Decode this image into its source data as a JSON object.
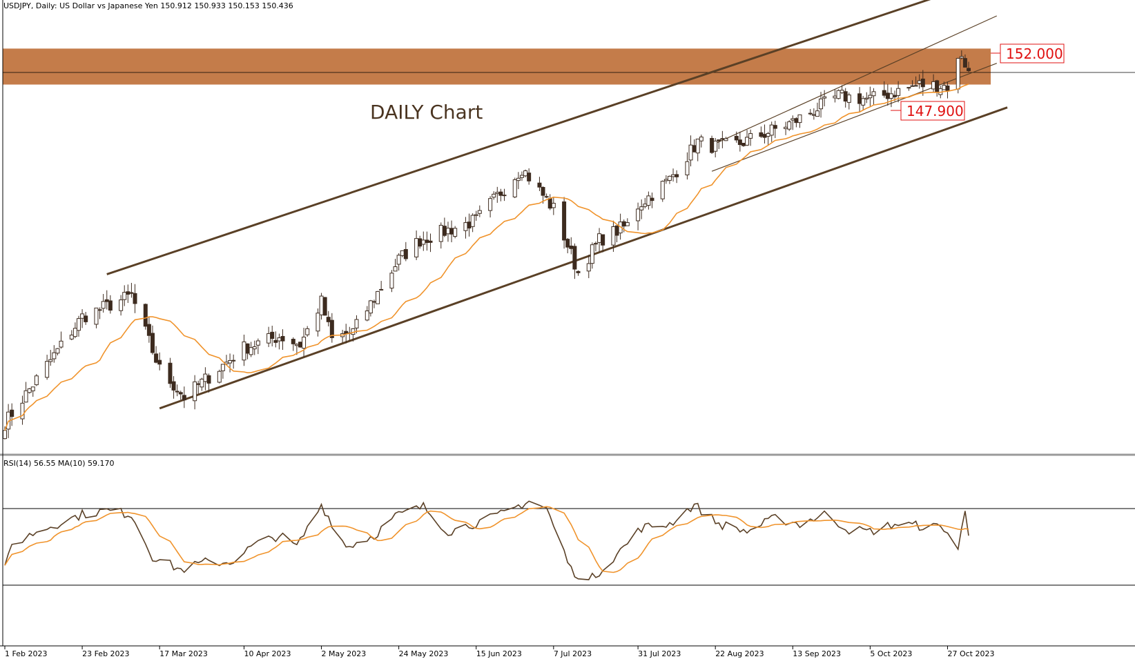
{
  "header": {
    "symbol_line": "USDJPY, Daily:  US Dollar vs Japanese Yen  150.912 150.933 150.153 150.436"
  },
  "annotation": "DAILY Chart",
  "levels": {
    "resistance": {
      "label": "152.000",
      "value": 152.0
    },
    "support": {
      "label": "147.900",
      "value": 147.9
    },
    "zone": {
      "from": 149.7,
      "to": 151.9,
      "color": "#c47c4a"
    },
    "current_price_line": 150.44
  },
  "rsi_panel": {
    "label": "RSI(14) 56.55 MA(10) 59.170",
    "levels": [
      70,
      30
    ]
  },
  "colors": {
    "candle_up": "#ffffff",
    "candle_down": "#3d2b1f",
    "wick": "#3d2b1f",
    "ma": "#f0932b",
    "channel": "#5a4026",
    "rsi": "#5a4026",
    "rsi_ma": "#f0932b",
    "level_text": "#e01010"
  },
  "chart_data": {
    "type": "candlestick",
    "title": "DAILY Chart",
    "x_tick_labels": [
      "1 Feb 2023",
      "23 Feb 2023",
      "17 Mar 2023",
      "10 Apr 2023",
      "2 May 2023",
      "24 May 2023",
      "15 Jun 2023",
      "7 Jul 2023",
      "31 Jul 2023",
      "22 Aug 2023",
      "13 Sep 2023",
      "5 Oct 2023",
      "27 Oct 2023"
    ],
    "ylim": [
      125.2,
      156.5
    ],
    "grid": false,
    "close_series": {
      "name": "USDJPY close",
      "anchors": [
        [
          "1 Feb 2023",
          129.0
        ],
        [
          "23 Feb 2023",
          135.5
        ],
        [
          "9 Mar 2023",
          136.8
        ],
        [
          "17 Mar 2023",
          132.3
        ],
        [
          "24 Mar 2023",
          130.6
        ],
        [
          "10 Apr 2023",
          133.6
        ],
        [
          "20 Apr 2023",
          134.3
        ],
        [
          "26 Apr 2023",
          133.8
        ],
        [
          "2 May 2023",
          136.4
        ],
        [
          "5 May 2023",
          134.1
        ],
        [
          "11 May 2023",
          134.6
        ],
        [
          "24 May 2023",
          139.0
        ],
        [
          "30 May 2023",
          140.2
        ],
        [
          "15 Jun 2023",
          141.4
        ],
        [
          "28 Jun 2023",
          144.6
        ],
        [
          "7 Jul 2023",
          142.1
        ],
        [
          "14 Jul 2023",
          138.2
        ],
        [
          "20 Jul 2023",
          140.2
        ],
        [
          "28 Jul 2023",
          141.1
        ],
        [
          "31 Jul 2023",
          142.3
        ],
        [
          "9 Aug 2023",
          143.9
        ],
        [
          "17 Aug 2023",
          146.2
        ],
        [
          "22 Aug 2023",
          145.9
        ],
        [
          "29 Aug 2023",
          146.1
        ],
        [
          "13 Sep 2023",
          147.4
        ],
        [
          "26 Sep 2023",
          149.0
        ],
        [
          "5 Oct 2023",
          148.8
        ],
        [
          "19 Oct 2023",
          149.7
        ],
        [
          "27 Oct 2023",
          149.6
        ],
        [
          "31 Oct 2023",
          151.6
        ],
        [
          "2 Nov 2023",
          150.4
        ]
      ]
    },
    "series": [
      {
        "name": "MA",
        "kind": "moving-average",
        "period": 20
      }
    ],
    "trendlines": [
      {
        "name": "upper-channel",
        "from": [
          "2 Mar 2023",
          138.1
        ],
        "to": [
          "13 Nov 2023",
          156.5
        ]
      },
      {
        "name": "lower-channel",
        "from": [
          "17 Mar 2023",
          129.9
        ],
        "to": [
          "13 Nov 2023",
          148.3
        ]
      },
      {
        "name": "inner-upper",
        "from": [
          "21 Aug 2023",
          146.0
        ],
        "to": [
          "10 Nov 2023",
          153.9
        ]
      },
      {
        "name": "inner-lower",
        "from": [
          "21 Aug 2023",
          144.4
        ],
        "to": [
          "10 Nov 2023",
          151.0
        ]
      }
    ],
    "rsi": {
      "name": "RSI(14)",
      "ylim": [
        0,
        100
      ],
      "levels": [
        70,
        30
      ],
      "anchors": [
        [
          "1 Feb 2023",
          38
        ],
        [
          "3 Feb 2023",
          51
        ],
        [
          "10 Feb 2023",
          58
        ],
        [
          "23 Feb 2023",
          67
        ],
        [
          "2 Mar 2023",
          69
        ],
        [
          "9 Mar 2023",
          67
        ],
        [
          "15 Mar 2023",
          45
        ],
        [
          "23 Mar 2023",
          38
        ],
        [
          "30 Mar 2023",
          42
        ],
        [
          "6 Apr 2023",
          42
        ],
        [
          "13 Apr 2023",
          51
        ],
        [
          "20 Apr 2023",
          56
        ],
        [
          "25 Apr 2023",
          50
        ],
        [
          "2 May 2023",
          72
        ],
        [
          "9 May 2023",
          50
        ],
        [
          "17 May 2023",
          56
        ],
        [
          "23 May 2023",
          66
        ],
        [
          "31 May 2023",
          71
        ],
        [
          "7 Jun 2023",
          58
        ],
        [
          "14 Jun 2023",
          62
        ],
        [
          "21 Jun 2023",
          66
        ],
        [
          "30 Jun 2023",
          74
        ],
        [
          "5 Jul 2023",
          70
        ],
        [
          "12 Jul 2023",
          38
        ],
        [
          "17 Jul 2023",
          32
        ],
        [
          "21 Jul 2023",
          39
        ],
        [
          "27 Jul 2023",
          50
        ],
        [
          "1 Aug 2023",
          60
        ],
        [
          "9 Aug 2023",
          62
        ],
        [
          "16 Aug 2023",
          72
        ],
        [
          "23 Aug 2023",
          62
        ],
        [
          "31 Aug 2023",
          58
        ],
        [
          "8 Sep 2023",
          65
        ],
        [
          "15 Sep 2023",
          62
        ],
        [
          "22 Sep 2023",
          67
        ],
        [
          "29 Sep 2023",
          59
        ],
        [
          "5 Oct 2023",
          58
        ],
        [
          "12 Oct 2023",
          62
        ],
        [
          "19 Oct 2023",
          61
        ],
        [
          "26 Oct 2023",
          60
        ],
        [
          "30 Oct 2023",
          49
        ],
        [
          "1 Nov 2023",
          68
        ],
        [
          "2 Nov 2023",
          57
        ]
      ]
    }
  }
}
